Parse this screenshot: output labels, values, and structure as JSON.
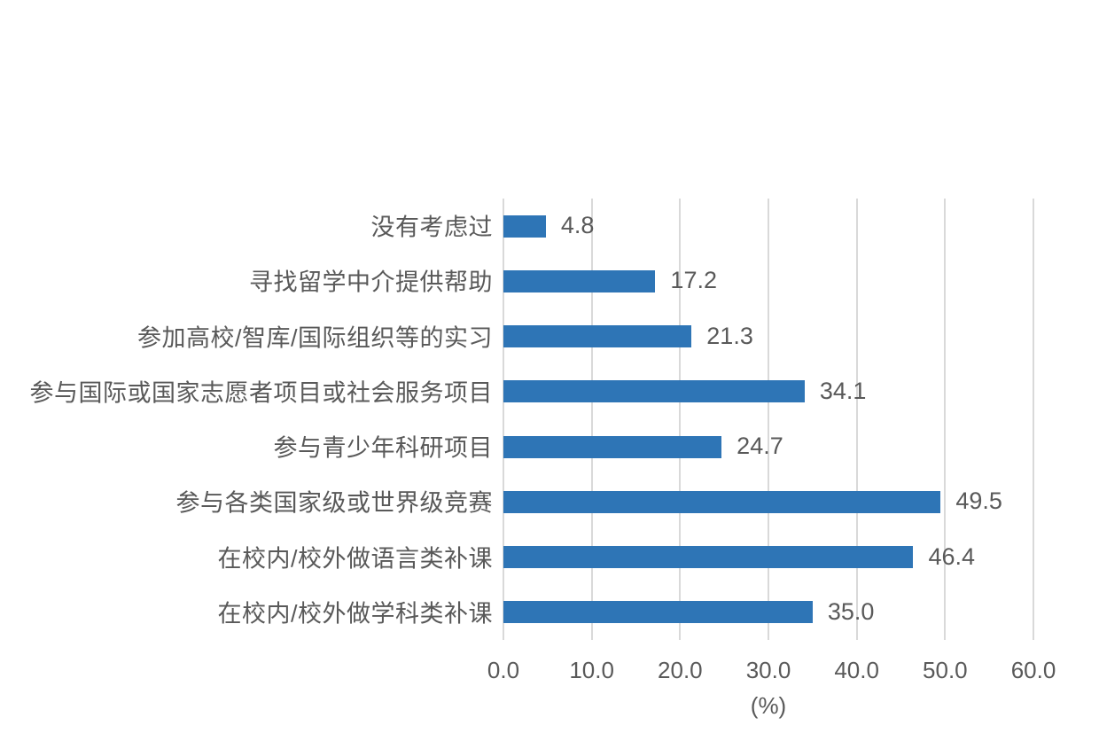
{
  "chart_data": {
    "type": "bar",
    "orientation": "horizontal",
    "title": "",
    "categories": [
      "没有考虑过",
      "寻找留学中介提供帮助",
      "参加高校/智库/国际组织等的实习",
      "参与国际或国家志愿者项目或社会服务项目",
      "参与青少年科研项目",
      "参与各类国家级或世界级竞赛",
      "在校内/校外做语言类补课",
      "在校内/校外做学科类补课"
    ],
    "values": [
      4.8,
      17.2,
      21.3,
      34.1,
      24.7,
      49.5,
      46.4,
      35.0
    ],
    "value_labels": [
      "4.8",
      "17.2",
      "21.3",
      "34.1",
      "24.7",
      "49.5",
      "46.4",
      "35.0"
    ],
    "xlabel": "(%)",
    "xlim": [
      0,
      60
    ],
    "xticks": [
      0,
      10,
      20,
      30,
      40,
      50,
      60
    ],
    "xtick_labels": [
      "0.0",
      "10.0",
      "20.0",
      "30.0",
      "40.0",
      "50.0",
      "60.0"
    ],
    "grid": "vertical-only",
    "legend": "none",
    "colors": {
      "bar": "#2E75B6",
      "gridline": "#D9D9D9",
      "text": "#595959",
      "background": "#FFFFFF"
    }
  }
}
